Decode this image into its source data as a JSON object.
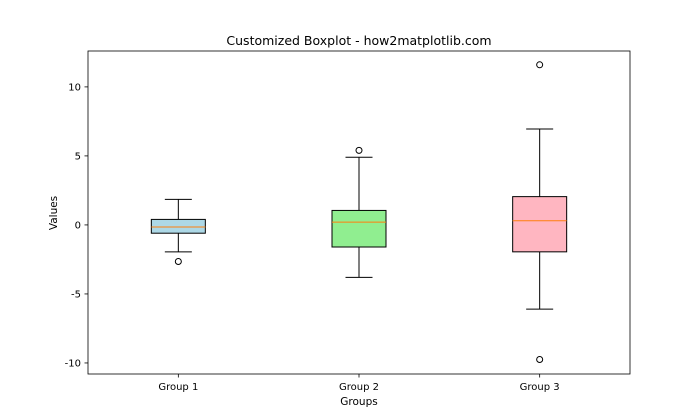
{
  "chart_data": {
    "type": "boxplot",
    "title": "Customized Boxplot - how2matplotlib.com",
    "xlabel": "Groups",
    "ylabel": "Values",
    "ylim": [
      -10.8,
      12.6
    ],
    "yticks": [
      -10,
      -5,
      0,
      5,
      10
    ],
    "ytick_labels": [
      "-10",
      "-5",
      "0",
      "5",
      "10"
    ],
    "categories": [
      "Group 1",
      "Group 2",
      "Group 3"
    ],
    "grid": false,
    "legend": "none",
    "series": [
      {
        "category": "Group 1",
        "whisker_low": -1.95,
        "q1": -0.6,
        "median": -0.15,
        "q3": 0.4,
        "whisker_high": 1.85,
        "outliers": [
          -2.65
        ],
        "fill": "#add8e6"
      },
      {
        "category": "Group 2",
        "whisker_low": -3.8,
        "q1": -1.6,
        "median": 0.2,
        "q3": 1.05,
        "whisker_high": 4.9,
        "outliers": [
          5.4
        ],
        "fill": "#90ee90"
      },
      {
        "category": "Group 3",
        "whisker_low": -6.1,
        "q1": -1.95,
        "median": 0.3,
        "q3": 2.05,
        "whisker_high": 6.95,
        "outliers": [
          11.6,
          -9.75
        ],
        "fill": "#ffb6c1"
      }
    ],
    "median_color": "#ff7f0e",
    "box_edge_color": "#000000"
  }
}
